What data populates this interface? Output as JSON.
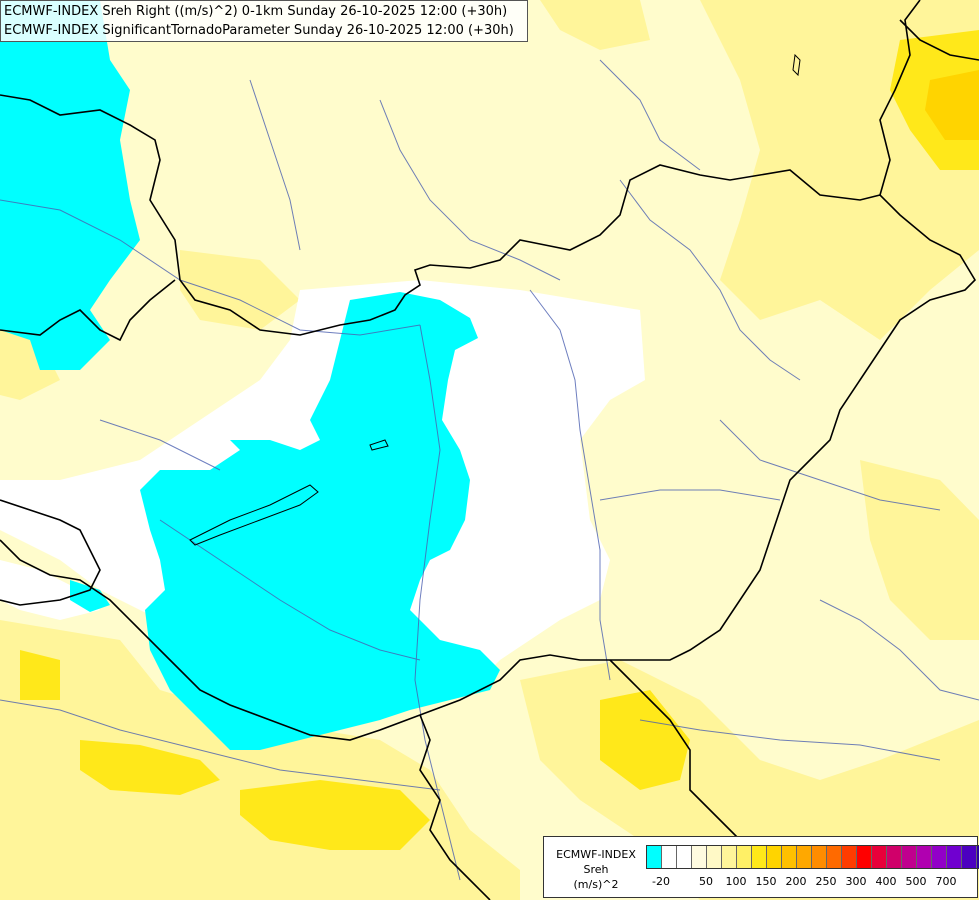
{
  "header": {
    "line1": "ECMWF-INDEX Sreh Right ((m/s)^2) 0-1km Sunday 26-10-2025 12:00 (+30h)",
    "line2": "ECMWF-INDEX SignificantTornadoParameter Sunday 26-10-2025 12:00 (+30h)"
  },
  "legend": {
    "title1": "ECMWF-INDEX",
    "title2": "Sreh",
    "title3": "(m/s)^2",
    "colors": [
      "#00ffff",
      "#ffffff",
      "#ffffff",
      "#fffbe0",
      "#fff9c6",
      "#fff59a",
      "#fff066",
      "#ffe81a",
      "#ffd400",
      "#ffc000",
      "#ffa800",
      "#ff8c00",
      "#ff6a00",
      "#ff3c00",
      "#ff0000",
      "#e8003a",
      "#d0006a",
      "#c0008e",
      "#b000b0",
      "#9200c8",
      "#7000d0",
      "#4c00c0",
      "#2c00a0",
      "#000080"
    ],
    "ticks": [
      "-20",
      "50",
      "100",
      "150",
      "200",
      "250",
      "300",
      "400",
      "500",
      "700"
    ]
  },
  "colors": {
    "cyan": "#00ffff",
    "white": "#ffffff",
    "pale_yellow": "#fffccc",
    "light_yellow": "#fff59a",
    "yellow": "#ffe81a",
    "orange_yellow": "#ffd400",
    "border": "#000000",
    "river": "#4a5fb0"
  }
}
